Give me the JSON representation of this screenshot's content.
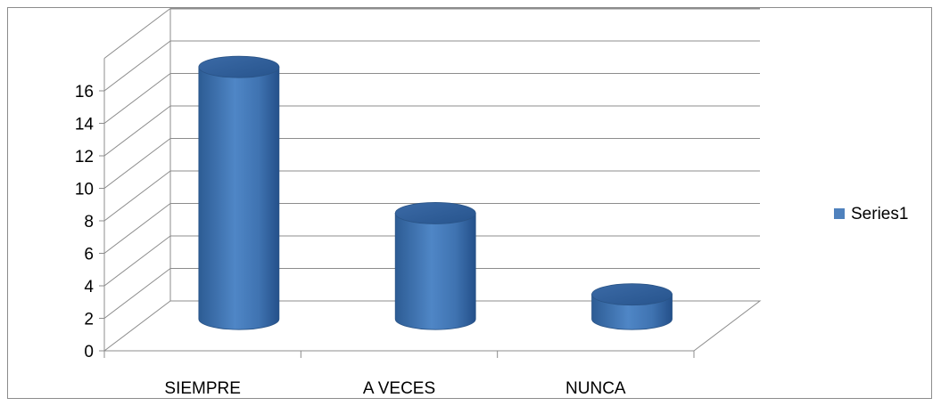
{
  "chart_data": {
    "type": "bar",
    "variant": "3d-cylinder",
    "title": "",
    "xlabel": "",
    "ylabel": "",
    "categories": [
      "SIEMPRE",
      "A VECES",
      "NUNCA"
    ],
    "series": [
      {
        "name": "Series1",
        "values": [
          16,
          7,
          2
        ],
        "color": "#4f81bd"
      }
    ],
    "ylim": [
      0,
      16
    ],
    "yticks": [
      "0",
      "2",
      "4",
      "6",
      "8",
      "10",
      "12",
      "14",
      "16"
    ],
    "grid": true,
    "legend": "right"
  }
}
